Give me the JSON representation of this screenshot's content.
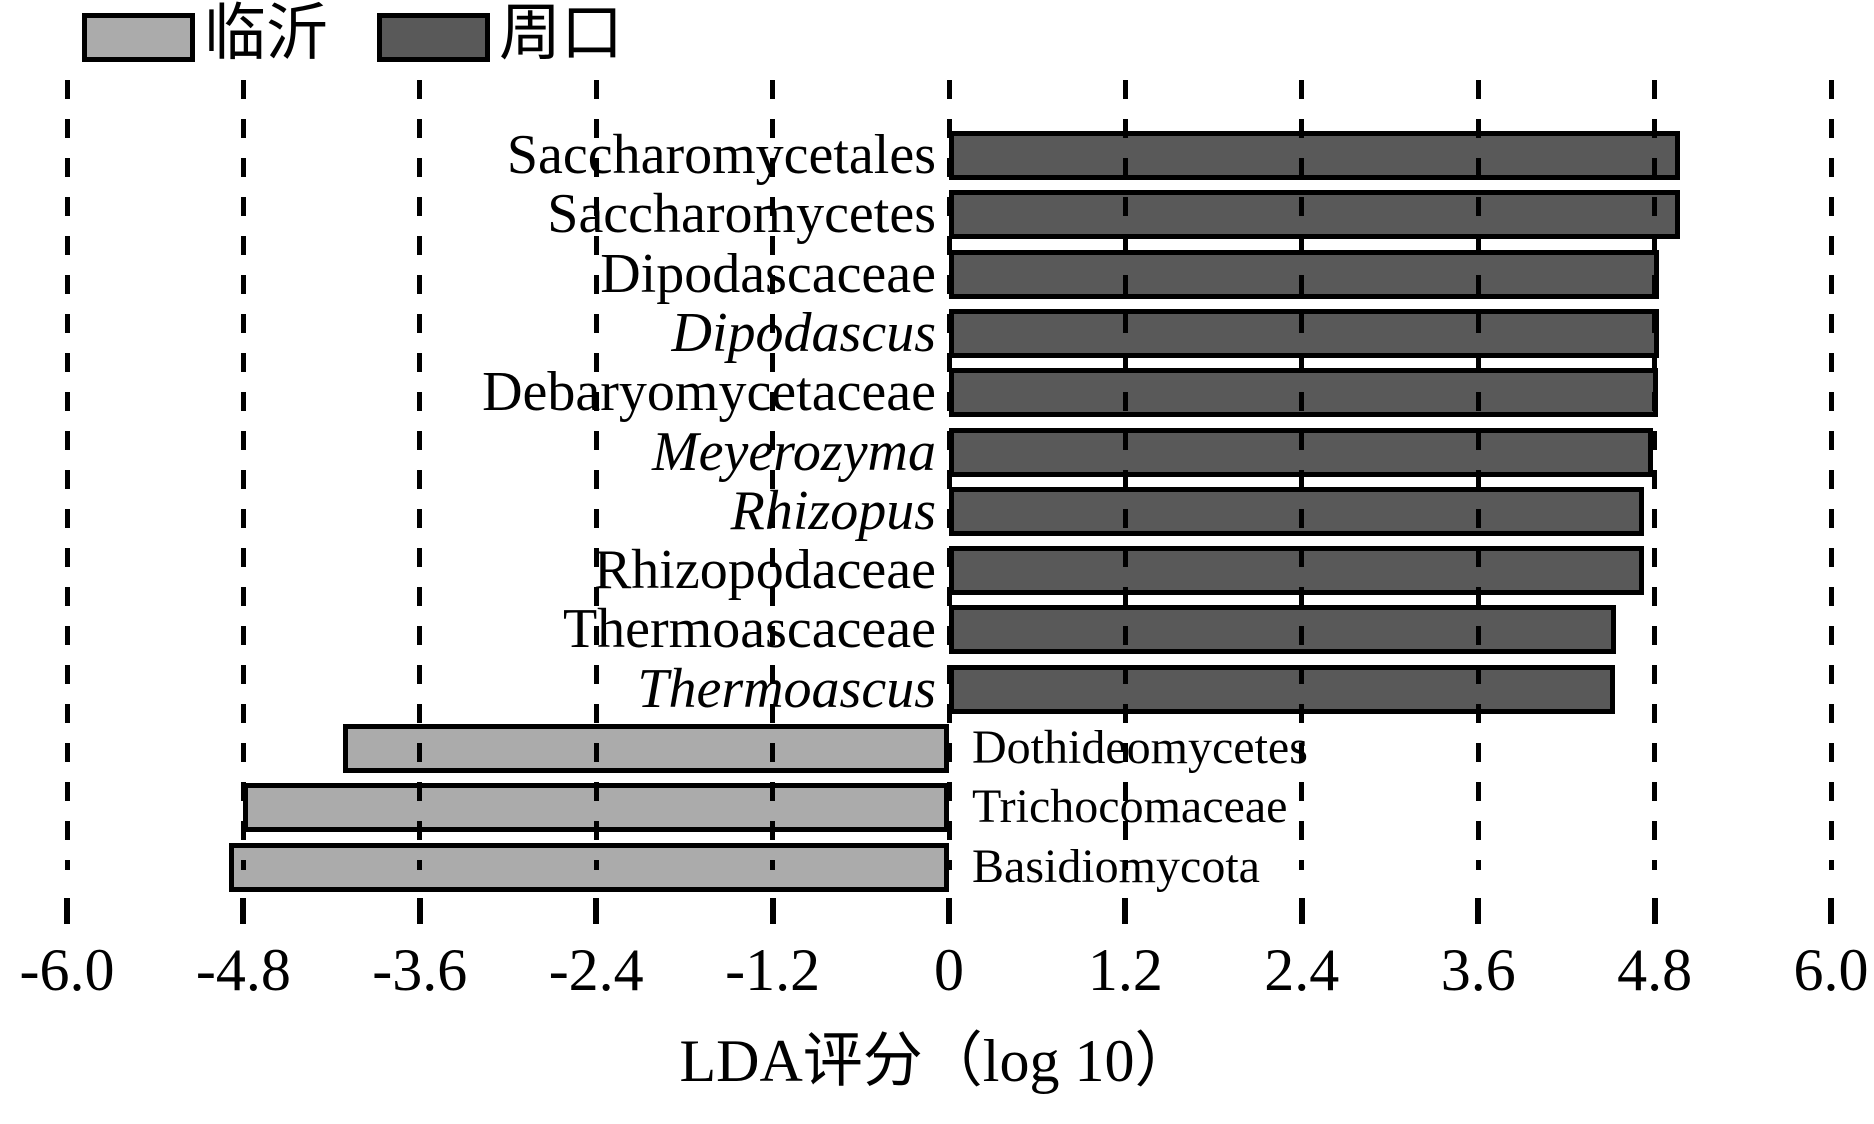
{
  "chart_data": {
    "type": "bar",
    "orientation": "horizontal",
    "title": "",
    "xlabel": "LDA评分（log 10）",
    "xlim": [
      -6.0,
      6.0
    ],
    "xtick_values": [
      -6.0,
      -4.8,
      -3.6,
      -2.4,
      -1.2,
      0,
      1.2,
      2.4,
      3.6,
      4.8,
      6.0
    ],
    "xtick_labels": [
      "-6.0",
      "-4.8",
      "-3.6",
      "-2.4",
      "-1.2",
      "0",
      "1.2",
      "2.4",
      "3.6",
      "4.8",
      "6.0"
    ],
    "grid": "vertical-dashed",
    "legend_position": "top-left",
    "legend": [
      {
        "label": "临沂",
        "color": "#ABABAB"
      },
      {
        "label": "周口",
        "color": "#595959"
      }
    ],
    "bars": [
      {
        "label": "Saccharomycetales",
        "value": 4.97,
        "group": "周口",
        "italic": false
      },
      {
        "label": "Saccharomycetes",
        "value": 4.97,
        "group": "周口",
        "italic": false
      },
      {
        "label": "Dipodascaceae",
        "value": 4.83,
        "group": "周口",
        "italic": false
      },
      {
        "label": "Dipodascus",
        "value": 4.83,
        "group": "周口",
        "italic": true
      },
      {
        "label": "Debaryomycetaceae",
        "value": 4.82,
        "group": "周口",
        "italic": false
      },
      {
        "label": "Meyerozyma",
        "value": 4.79,
        "group": "周口",
        "italic": true
      },
      {
        "label": "Rhizopus",
        "value": 4.73,
        "group": "周口",
        "italic": true
      },
      {
        "label": "Rhizopodaceae",
        "value": 4.73,
        "group": "周口",
        "italic": false
      },
      {
        "label": "Thermoascaceae",
        "value": 4.54,
        "group": "周口",
        "italic": false
      },
      {
        "label": "Thermoascus",
        "value": 4.53,
        "group": "周口",
        "italic": true
      },
      {
        "label": "Dothideomycetes",
        "value": -4.12,
        "group": "临沂",
        "italic": false
      },
      {
        "label": "Trichocomaceae",
        "value": -4.8,
        "group": "临沂",
        "italic": false
      },
      {
        "label": "Basidiomycota",
        "value": -4.9,
        "group": "临沂",
        "italic": false
      }
    ]
  },
  "colors": {
    "group_linyi": "#ABABAB",
    "group_zhoukou": "#595959",
    "bar_border": "#000000",
    "background": "#FFFFFF",
    "text": "#000000"
  }
}
